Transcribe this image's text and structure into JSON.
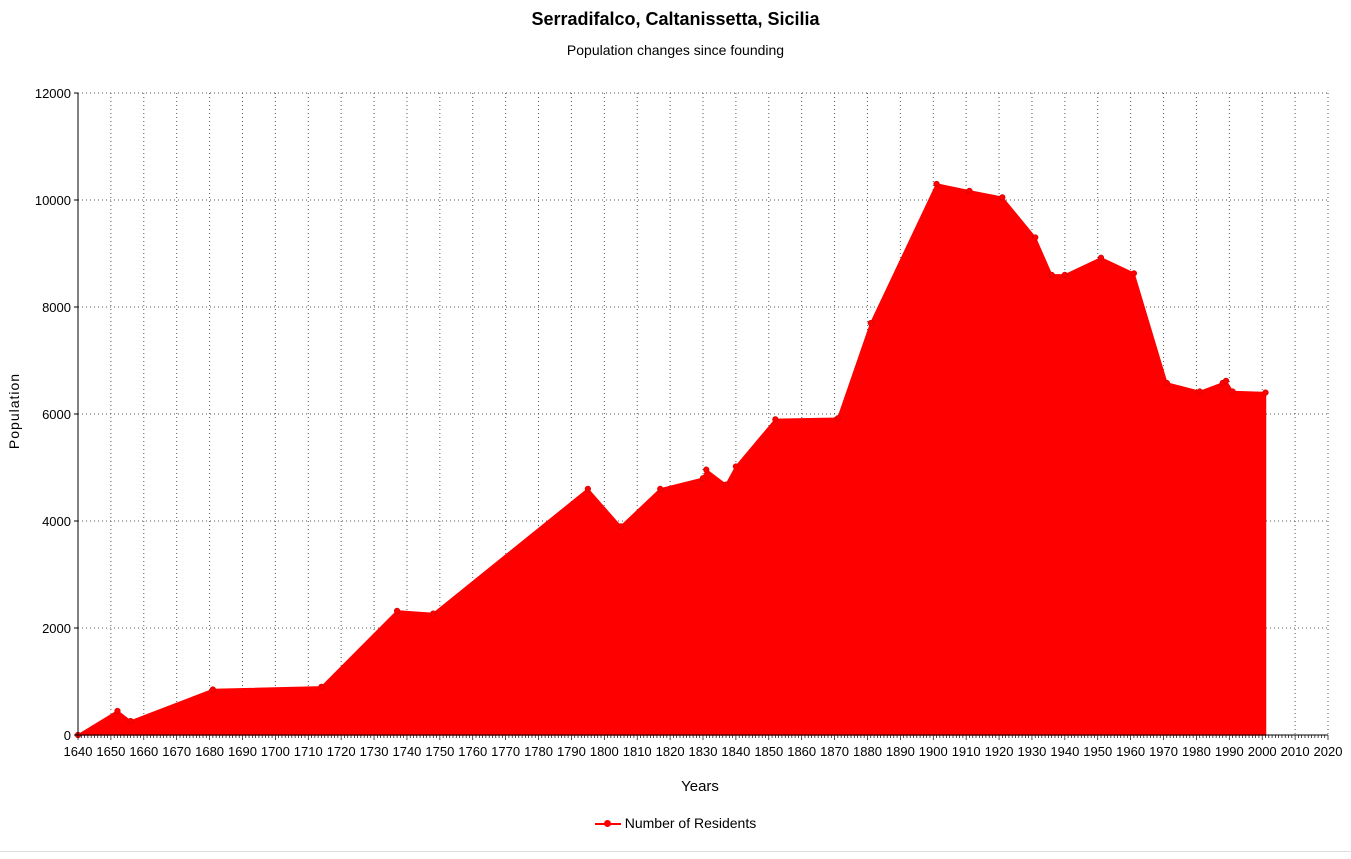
{
  "chart_data": {
    "type": "area",
    "title": "Serradifalco, Caltanissetta, Sicilia",
    "subtitle": "Population changes since founding",
    "xlabel": "Years",
    "ylabel": "Population",
    "xlim": [
      1640,
      2020
    ],
    "ylim": [
      0,
      12000
    ],
    "x_ticks": [
      1640,
      1650,
      1660,
      1670,
      1680,
      1690,
      1700,
      1710,
      1720,
      1730,
      1740,
      1750,
      1760,
      1770,
      1780,
      1790,
      1800,
      1810,
      1820,
      1830,
      1840,
      1850,
      1860,
      1870,
      1880,
      1890,
      1900,
      1910,
      1920,
      1930,
      1940,
      1950,
      1960,
      1970,
      1980,
      1990,
      2000,
      2010,
      2020
    ],
    "y_ticks": [
      0,
      2000,
      4000,
      6000,
      8000,
      10000,
      12000
    ],
    "grid": true,
    "legend_position": "bottom",
    "colors": {
      "series": "#ff0000"
    },
    "series": [
      {
        "name": "Number of Residents",
        "x": [
          1640,
          1652,
          1656,
          1681,
          1714,
          1737,
          1748,
          1795,
          1805,
          1817,
          1830,
          1831,
          1837,
          1840,
          1852,
          1871,
          1881,
          1901,
          1911,
          1921,
          1931,
          1936,
          1940,
          1951,
          1961,
          1971,
          1981,
          1988,
          1989,
          1991,
          2001
        ],
        "y": [
          0,
          450,
          260,
          850,
          900,
          2320,
          2270,
          4600,
          3900,
          4600,
          4800,
          4960,
          4680,
          5020,
          5900,
          5920,
          7700,
          10300,
          10170,
          10050,
          9300,
          8600,
          8600,
          8920,
          8630,
          6580,
          6420,
          6580,
          6620,
          6420,
          6400
        ]
      }
    ]
  }
}
